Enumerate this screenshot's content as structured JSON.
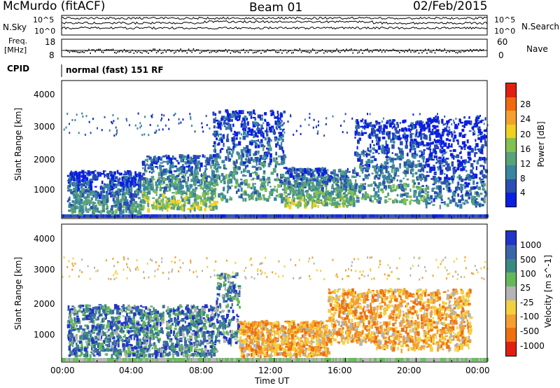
{
  "header": {
    "station": "McMurdo (fitACF)",
    "beam": "Beam 01",
    "date": "02/Feb/2015"
  },
  "noise_panel": {
    "left_label": "N.Sky",
    "right_label": "N.Search",
    "left_ticks": [
      "10^5",
      "10^0"
    ],
    "right_ticks": [
      "10^5",
      "10^0"
    ]
  },
  "freq_panel": {
    "left_label": "Freq.",
    "left_unit": "[MHz]",
    "left_ticks": [
      "18",
      "8"
    ],
    "right_label": "Nave",
    "right_ticks": [
      "60",
      "0"
    ]
  },
  "cpid": {
    "label": "CPID",
    "value": "normal (fast) 151 RF"
  },
  "time_axis": {
    "label": "Time UT",
    "ticks": [
      "00:00",
      "04:00",
      "08:00",
      "12:00",
      "16:00",
      "20:00",
      "00:00"
    ]
  },
  "chart_data": [
    {
      "type": "heatmap",
      "title": "Power",
      "ylabel": "Slant Range [km]",
      "xlabel": "",
      "yticks": [
        "1000",
        "2000",
        "3000",
        "4000"
      ],
      "ylim": [
        180,
        4500
      ],
      "xlim_hours": [
        0,
        24
      ],
      "colorbar": {
        "label": "Power [dB]",
        "ticks": [
          "4",
          "8",
          "12",
          "16",
          "20",
          "24",
          "28"
        ],
        "colors": [
          "#0b1fe0",
          "#2a4fb0",
          "#3a86a0",
          "#58a37a",
          "#86c050",
          "#f0d020",
          "#f4a030",
          "#f06a10",
          "#e02010"
        ]
      },
      "echo_regions": [
        {
          "t_start": 0.3,
          "t_end": 4.5,
          "r_min": 400,
          "r_max": 1700,
          "level": "mid"
        },
        {
          "t_start": 4.5,
          "t_end": 8.7,
          "r_min": 500,
          "r_max": 2200,
          "level": "high"
        },
        {
          "t_start": 8.5,
          "t_end": 12.5,
          "r_min": 800,
          "r_max": 3600,
          "level": "mid"
        },
        {
          "t_start": 12.5,
          "t_end": 16.5,
          "r_min": 600,
          "r_max": 1800,
          "level": "high"
        },
        {
          "t_start": 16.5,
          "t_end": 20.5,
          "r_min": 700,
          "r_max": 3300,
          "level": "mid"
        },
        {
          "t_start": 20.5,
          "t_end": 23.9,
          "r_min": 600,
          "r_max": 3400,
          "level": "low"
        }
      ]
    },
    {
      "type": "heatmap",
      "title": "Velocity",
      "ylabel": "Slant Range [km]",
      "xlabel": "Time UT",
      "yticks": [
        "1000",
        "2000",
        "3000",
        "4000"
      ],
      "ylim": [
        180,
        4500
      ],
      "xlim_hours": [
        0,
        24
      ],
      "colorbar": {
        "label": "Velocity [m s^-1]",
        "ticks": [
          "1000",
          "500",
          "100",
          "25",
          "-25",
          "-100",
          "-500",
          "-1000"
        ],
        "colors": [
          "#2234c8",
          "#3a66a8",
          "#3a8a82",
          "#66b85a",
          "#b4b4b4",
          "#f4d040",
          "#f4a030",
          "#ee7010",
          "#e02010"
        ]
      },
      "echo_regions": [
        {
          "t_start": 0.3,
          "t_end": 8.7,
          "r_min": 400,
          "r_max": 2000,
          "sign": "positive"
        },
        {
          "t_start": 8.7,
          "t_end": 10.0,
          "r_min": 800,
          "r_max": 3000,
          "sign": "positive"
        },
        {
          "t_start": 10.0,
          "t_end": 15.0,
          "r_min": 400,
          "r_max": 1500,
          "sign": "negative"
        },
        {
          "t_start": 15.0,
          "t_end": 17.5,
          "r_min": 800,
          "r_max": 2500,
          "sign": "negative"
        },
        {
          "t_start": 17.5,
          "t_end": 23.0,
          "r_min": 600,
          "r_max": 2500,
          "sign": "negative"
        }
      ]
    }
  ]
}
